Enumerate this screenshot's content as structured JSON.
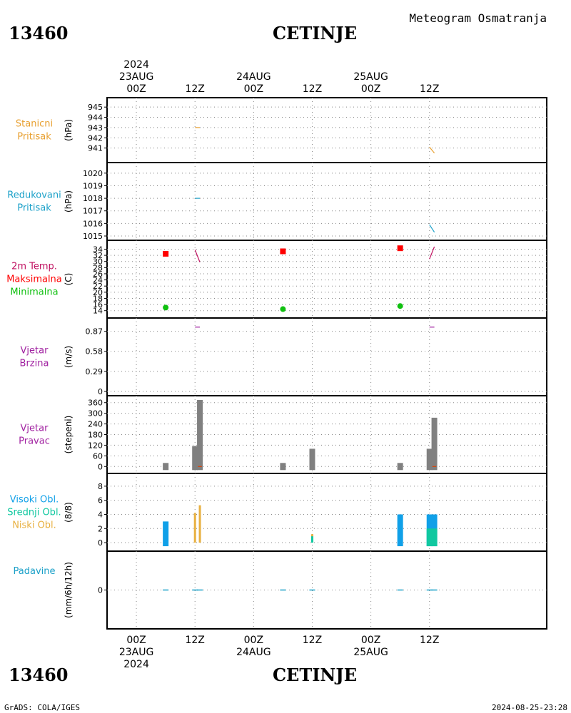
{
  "header": {
    "station_id": "13460",
    "station_name": "CETINJE",
    "product_title": "Meteogram Osmatranja"
  },
  "footer": {
    "credit": "GrADS: COLA/IGES",
    "timestamp": "2024-08-25-23:28"
  },
  "colors": {
    "station_pressure": "#e8a030",
    "reduced_pressure": "#1aa0c8",
    "temp_line": "#c01060",
    "temp_max": "#ff0000",
    "temp_min": "#10c010",
    "wind_speed": "#a020a0",
    "wind_dir_bar": "#808080",
    "wind_dir_line": "#e04000",
    "clouds_high": "#10a0e8",
    "clouds_mid": "#10c8a0",
    "clouds_low": "#e8b040",
    "precip": "#1aa0c8"
  },
  "chart_data": {
    "type": "meteogram",
    "time_axis": {
      "start": "2024-08-23 00Z",
      "end": "2024-08-25 18Z",
      "top_labels": [
        {
          "time_h": 0,
          "lines": [
            "2024",
            "23AUG",
            "00Z"
          ]
        },
        {
          "time_h": 12,
          "lines": [
            "12Z"
          ]
        },
        {
          "time_h": 24,
          "lines": [
            "24AUG",
            "00Z"
          ]
        },
        {
          "time_h": 36,
          "lines": [
            "12Z"
          ]
        },
        {
          "time_h": 48,
          "lines": [
            "25AUG",
            "00Z"
          ]
        },
        {
          "time_h": 60,
          "lines": [
            "12Z"
          ]
        }
      ],
      "bottom_labels": [
        {
          "time_h": 0,
          "lines": [
            "00Z",
            "23AUG",
            "2024"
          ]
        },
        {
          "time_h": 12,
          "lines": [
            "12Z"
          ]
        },
        {
          "time_h": 24,
          "lines": [
            "00Z",
            "24AUG"
          ]
        },
        {
          "time_h": 36,
          "lines": [
            "12Z"
          ]
        },
        {
          "time_h": 48,
          "lines": [
            "00Z",
            "25AUG"
          ]
        },
        {
          "time_h": 60,
          "lines": [
            "12Z"
          ]
        }
      ],
      "grid": true
    },
    "panels": [
      {
        "id": "station_pressure",
        "labels": [
          {
            "text": "Stanicni",
            "color": "#e8a030"
          },
          {
            "text": "Pritisak",
            "color": "#e8a030"
          }
        ],
        "unit": "(hPa)",
        "ylim": [
          940,
          945.5
        ],
        "ticks": [
          941,
          942,
          943,
          944,
          945
        ],
        "series": [
          {
            "kind": "line",
            "color": "#e8a030",
            "points": [
              [
                12,
                943.0
              ],
              [
                13,
                943.0
              ]
            ]
          },
          {
            "kind": "line",
            "color": "#e8a030",
            "points": [
              [
                60,
                941.1
              ],
              [
                61,
                940.5
              ]
            ]
          }
        ]
      },
      {
        "id": "reduced_pressure",
        "labels": [
          {
            "text": "Redukovani",
            "color": "#1aa0c8"
          },
          {
            "text": "Pritisak",
            "color": "#1aa0c8"
          }
        ],
        "unit": "(hPa)",
        "ylim": [
          1015,
          1020.5
        ],
        "ticks": [
          1015,
          1016,
          1017,
          1018,
          1019,
          1020
        ],
        "series": [
          {
            "kind": "line",
            "color": "#1aa0c8",
            "points": [
              [
                12,
                1018.0
              ],
              [
                13,
                1018.0
              ]
            ]
          },
          {
            "kind": "line",
            "color": "#1aa0c8",
            "points": [
              [
                60,
                1015.9
              ],
              [
                61,
                1015.3
              ]
            ]
          }
        ]
      },
      {
        "id": "temperature",
        "labels": [
          {
            "text": "2m Temp.",
            "color": "#c01060"
          },
          {
            "text": "Maksimalna",
            "color": "#ff0000"
          },
          {
            "text": "Minimalna",
            "color": "#10c010"
          }
        ],
        "unit": "(C)",
        "ylim": [
          13,
          35.5
        ],
        "ticks": [
          14,
          16,
          18,
          20,
          22,
          24,
          26,
          28,
          30,
          32,
          34
        ],
        "series": [
          {
            "kind": "line",
            "color": "#c01060",
            "points": [
              [
                12,
                33.8
              ],
              [
                13,
                29.8
              ]
            ]
          },
          {
            "kind": "line",
            "color": "#c01060",
            "points": [
              [
                60,
                30.8
              ],
              [
                61,
                34.8
              ]
            ]
          },
          {
            "kind": "squares",
            "color": "#ff0000",
            "name": "Maksimalna",
            "points": [
              [
                6,
                32.5
              ],
              [
                30,
                33.3
              ],
              [
                54,
                34.3
              ]
            ]
          },
          {
            "kind": "circles",
            "color": "#10c010",
            "name": "Minimalna",
            "points": [
              [
                6,
                15.0
              ],
              [
                30,
                14.5
              ],
              [
                54,
                15.5
              ]
            ]
          }
        ]
      },
      {
        "id": "wind_speed",
        "labels": [
          {
            "text": "Vjetar",
            "color": "#a020a0"
          },
          {
            "text": "Brzina",
            "color": "#a020a0"
          }
        ],
        "unit": "(m/s)",
        "ylim": [
          0,
          1.0
        ],
        "ticks": [
          0,
          0.29,
          0.58,
          0.87
        ],
        "series": [
          {
            "kind": "line",
            "color": "#a020a0",
            "points": [
              [
                12,
                0.93
              ],
              [
                13,
                0.93
              ]
            ]
          },
          {
            "kind": "line",
            "color": "#a020a0",
            "points": [
              [
                60,
                0.93
              ],
              [
                61,
                0.93
              ]
            ]
          }
        ]
      },
      {
        "id": "wind_direction",
        "labels": [
          {
            "text": "Vjetar",
            "color": "#a020a0"
          },
          {
            "text": "Pravac",
            "color": "#a020a0"
          }
        ],
        "unit": "(stepeni)",
        "ylim": [
          -15,
          375
        ],
        "ticks": [
          0,
          60,
          120,
          180,
          240,
          300,
          360
        ],
        "series": [
          {
            "kind": "bars",
            "color": "#808080",
            "points": [
              [
                6,
                20
              ],
              [
                12,
                115
              ],
              [
                13,
                375
              ],
              [
                30,
                20
              ],
              [
                36,
                100
              ],
              [
                54,
                20
              ],
              [
                60,
                100
              ],
              [
                61,
                275
              ]
            ]
          },
          {
            "kind": "line",
            "color": "#e04000",
            "points": [
              [
                12.6,
                0
              ],
              [
                13.4,
                0
              ]
            ]
          },
          {
            "kind": "line",
            "color": "#e04000",
            "points": [
              [
                60.6,
                0
              ],
              [
                61.4,
                0
              ]
            ]
          }
        ]
      },
      {
        "id": "clouds",
        "labels": [
          {
            "text": "Visoki Obl.",
            "color": "#10a0e8"
          },
          {
            "text": "Srednji Obl.",
            "color": "#10c8a0"
          },
          {
            "text": "Niski Obl.",
            "color": "#e8b040"
          }
        ],
        "unit": "(8/8)",
        "ylim": [
          -0.6,
          9.2
        ],
        "ticks": [
          0,
          2,
          4,
          6,
          8
        ],
        "series": [
          {
            "kind": "bars",
            "color": "#10a0e8",
            "name": "Visoki Obl.",
            "points": [
              [
                6,
                3
              ],
              [
                54,
                4
              ],
              [
                60,
                4
              ],
              [
                61,
                4
              ]
            ]
          },
          {
            "kind": "bars",
            "color": "#10c8a0",
            "name": "Srednji Obl.",
            "points": [
              [
                60,
                2
              ],
              [
                61,
                2
              ]
            ]
          },
          {
            "kind": "thinbars",
            "color": "#e8b040",
            "name": "Niski Obl.",
            "points": [
              [
                12,
                4.2
              ],
              [
                13,
                5.3
              ],
              [
                36,
                1.2
              ]
            ]
          },
          {
            "kind": "thinbars",
            "color": "#10c8a0",
            "points": [
              [
                36,
                0.9
              ]
            ]
          }
        ]
      },
      {
        "id": "precipitation",
        "labels": [
          {
            "text": "Padavine",
            "color": "#1aa0c8"
          }
        ],
        "unit": "(mm/6h/12h)",
        "ylim": [
          -5,
          5
        ],
        "ticks": [
          0
        ],
        "series": [
          {
            "kind": "dashes",
            "color": "#1aa0c8",
            "points": [
              [
                6,
                0
              ],
              [
                12,
                0
              ],
              [
                13,
                0
              ],
              [
                30,
                0
              ],
              [
                36,
                0
              ],
              [
                54,
                0
              ],
              [
                60,
                0
              ],
              [
                61,
                0
              ]
            ]
          }
        ]
      }
    ]
  }
}
